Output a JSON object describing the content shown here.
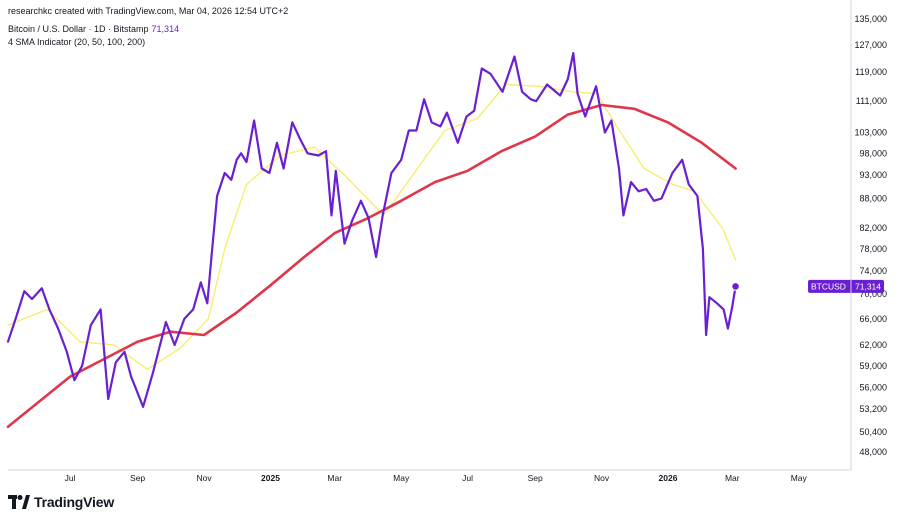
{
  "header": {
    "credit": "researchkc created with TradingView.com, Mar 04, 2026 12:54 UTC+2",
    "symbol": "Bitcoin / U.S. Dollar · 1D · Bitstamp",
    "last_price_inline": "71,314",
    "indicator": "4 SMA Indicator (20, 50, 100, 200)"
  },
  "footer": {
    "logo_text": "TradingView"
  },
  "colors": {
    "price": "#6a1fd0",
    "sma_fast": "#f7ee6f",
    "sma_slow": "#e0364a",
    "axis_text": "#131722",
    "axis_line": "#d1d4dc"
  },
  "chart_data": {
    "type": "line",
    "y_scale": "log",
    "y_ticks": [
      "135,000",
      "127,000",
      "119,000",
      "111,000",
      "103,000",
      "98,000",
      "93,000",
      "88,000",
      "82,000",
      "78,000",
      "74,000",
      "70,000",
      "66,000",
      "62,000",
      "59,000",
      "56,000",
      "53,200",
      "50,400",
      "48,000"
    ],
    "x_ticks": [
      {
        "label": "Jul",
        "date": "2024-07-01",
        "bold": false
      },
      {
        "label": "Sep",
        "date": "2024-09-01",
        "bold": false
      },
      {
        "label": "Nov",
        "date": "2024-11-01",
        "bold": false
      },
      {
        "label": "2025",
        "date": "2025-01-01",
        "bold": true
      },
      {
        "label": "Mar",
        "date": "2025-03-01",
        "bold": false
      },
      {
        "label": "May",
        "date": "2025-05-01",
        "bold": false
      },
      {
        "label": "Jul",
        "date": "2025-07-01",
        "bold": false
      },
      {
        "label": "Sep",
        "date": "2025-09-01",
        "bold": false
      },
      {
        "label": "Nov",
        "date": "2025-11-01",
        "bold": false
      },
      {
        "label": "2026",
        "date": "2026-01-01",
        "bold": true
      },
      {
        "label": "Mar",
        "date": "2026-03-01",
        "bold": false
      },
      {
        "label": "May",
        "date": "2026-05-01",
        "bold": false
      }
    ],
    "x_range": [
      "2024-05-05",
      "2026-06-18"
    ],
    "y_range": [
      46000,
      138000
    ],
    "last_price_label": {
      "symbol": "BTCUSD",
      "value": "71,314"
    },
    "series": [
      {
        "role": "price",
        "points": [
          [
            "2024-05-05",
            62500
          ],
          [
            "2024-05-12",
            66000
          ],
          [
            "2024-05-20",
            70500
          ],
          [
            "2024-05-27",
            69200
          ],
          [
            "2024-06-05",
            71000
          ],
          [
            "2024-06-12",
            67500
          ],
          [
            "2024-06-20",
            64500
          ],
          [
            "2024-06-28",
            61000
          ],
          [
            "2024-07-05",
            57000
          ],
          [
            "2024-07-12",
            59000
          ],
          [
            "2024-07-20",
            65000
          ],
          [
            "2024-07-29",
            67500
          ],
          [
            "2024-08-05",
            54500
          ],
          [
            "2024-08-12",
            59500
          ],
          [
            "2024-08-20",
            61000
          ],
          [
            "2024-08-26",
            57500
          ],
          [
            "2024-09-06",
            53500
          ],
          [
            "2024-09-15",
            58000
          ],
          [
            "2024-09-27",
            65500
          ],
          [
            "2024-10-05",
            62000
          ],
          [
            "2024-10-14",
            66000
          ],
          [
            "2024-10-22",
            67500
          ],
          [
            "2024-10-29",
            72000
          ],
          [
            "2024-11-04",
            68500
          ],
          [
            "2024-11-08",
            77000
          ],
          [
            "2024-11-13",
            88500
          ],
          [
            "2024-11-20",
            93500
          ],
          [
            "2024-11-26",
            92000
          ],
          [
            "2024-12-01",
            96500
          ],
          [
            "2024-12-05",
            98000
          ],
          [
            "2024-12-10",
            96000
          ],
          [
            "2024-12-17",
            106000
          ],
          [
            "2024-12-24",
            94500
          ],
          [
            "2024-12-31",
            93500
          ],
          [
            "2025-01-07",
            100500
          ],
          [
            "2025-01-13",
            94500
          ],
          [
            "2025-01-21",
            105500
          ],
          [
            "2025-01-28",
            101500
          ],
          [
            "2025-02-04",
            98000
          ],
          [
            "2025-02-14",
            97500
          ],
          [
            "2025-02-21",
            98500
          ],
          [
            "2025-02-26",
            84500
          ],
          [
            "2025-03-02",
            94000
          ],
          [
            "2025-03-10",
            79000
          ],
          [
            "2025-03-17",
            83500
          ],
          [
            "2025-03-25",
            87500
          ],
          [
            "2025-04-01",
            84000
          ],
          [
            "2025-04-08",
            76500
          ],
          [
            "2025-04-14",
            84500
          ],
          [
            "2025-04-22",
            93500
          ],
          [
            "2025-05-01",
            96500
          ],
          [
            "2025-05-08",
            103500
          ],
          [
            "2025-05-15",
            103500
          ],
          [
            "2025-05-22",
            111500
          ],
          [
            "2025-05-29",
            105500
          ],
          [
            "2025-06-06",
            104500
          ],
          [
            "2025-06-12",
            108000
          ],
          [
            "2025-06-22",
            100500
          ],
          [
            "2025-06-30",
            107000
          ],
          [
            "2025-07-07",
            108500
          ],
          [
            "2025-07-14",
            120000
          ],
          [
            "2025-07-22",
            118500
          ],
          [
            "2025-08-02",
            113500
          ],
          [
            "2025-08-13",
            123500
          ],
          [
            "2025-08-20",
            113500
          ],
          [
            "2025-08-28",
            111500
          ],
          [
            "2025-09-02",
            111000
          ],
          [
            "2025-09-12",
            115500
          ],
          [
            "2025-09-24",
            112500
          ],
          [
            "2025-10-01",
            117000
          ],
          [
            "2025-10-06",
            124500
          ],
          [
            "2025-10-10",
            113000
          ],
          [
            "2025-10-17",
            107000
          ],
          [
            "2025-10-27",
            115000
          ],
          [
            "2025-11-04",
            103000
          ],
          [
            "2025-11-10",
            106000
          ],
          [
            "2025-11-17",
            94500
          ],
          [
            "2025-11-21",
            84500
          ],
          [
            "2025-11-28",
            91500
          ],
          [
            "2025-12-05",
            89500
          ],
          [
            "2025-12-12",
            90000
          ],
          [
            "2025-12-19",
            87500
          ],
          [
            "2025-12-26",
            88000
          ],
          [
            "2026-01-05",
            93500
          ],
          [
            "2026-01-14",
            96500
          ],
          [
            "2026-01-20",
            91000
          ],
          [
            "2026-01-28",
            88500
          ],
          [
            "2026-02-02",
            78000
          ],
          [
            "2026-02-05",
            63500
          ],
          [
            "2026-02-08",
            69500
          ],
          [
            "2026-02-15",
            68500
          ],
          [
            "2026-02-21",
            67500
          ],
          [
            "2026-02-25",
            64500
          ],
          [
            "2026-03-01",
            68000
          ],
          [
            "2026-03-04",
            71314
          ]
        ]
      },
      {
        "role": "sma_fast",
        "points": [
          [
            "2024-05-05",
            65000
          ],
          [
            "2024-06-10",
            67500
          ],
          [
            "2024-07-10",
            62500
          ],
          [
            "2024-08-10",
            62000
          ],
          [
            "2024-09-10",
            58500
          ],
          [
            "2024-10-10",
            61500
          ],
          [
            "2024-11-05",
            66000
          ],
          [
            "2024-11-20",
            78000
          ],
          [
            "2024-12-10",
            91000
          ],
          [
            "2025-01-10",
            97500
          ],
          [
            "2025-02-10",
            99500
          ],
          [
            "2025-03-10",
            93000
          ],
          [
            "2025-04-15",
            84500
          ],
          [
            "2025-05-10",
            92500
          ],
          [
            "2025-06-10",
            103500
          ],
          [
            "2025-07-10",
            106500
          ],
          [
            "2025-08-05",
            115500
          ],
          [
            "2025-09-05",
            115000
          ],
          [
            "2025-10-05",
            113500
          ],
          [
            "2025-10-28",
            113000
          ],
          [
            "2025-11-15",
            104500
          ],
          [
            "2025-12-10",
            94500
          ],
          [
            "2026-01-05",
            91000
          ],
          [
            "2026-01-25",
            89500
          ],
          [
            "2026-02-20",
            82000
          ],
          [
            "2026-03-04",
            76000
          ]
        ]
      },
      {
        "role": "sma_slow",
        "points": [
          [
            "2024-05-05",
            51000
          ],
          [
            "2024-07-01",
            57500
          ],
          [
            "2024-09-01",
            62500
          ],
          [
            "2024-10-01",
            64000
          ],
          [
            "2024-11-01",
            63500
          ],
          [
            "2024-12-01",
            67000
          ],
          [
            "2025-01-01",
            71500
          ],
          [
            "2025-02-01",
            76500
          ],
          [
            "2025-03-01",
            81000
          ],
          [
            "2025-04-01",
            84000
          ],
          [
            "2025-05-01",
            87500
          ],
          [
            "2025-06-01",
            91500
          ],
          [
            "2025-07-01",
            94000
          ],
          [
            "2025-08-01",
            98500
          ],
          [
            "2025-09-01",
            102000
          ],
          [
            "2025-10-01",
            107500
          ],
          [
            "2025-11-01",
            110000
          ],
          [
            "2025-12-01",
            109000
          ],
          [
            "2026-01-01",
            105500
          ],
          [
            "2026-02-01",
            100500
          ],
          [
            "2026-03-04",
            94500
          ]
        ]
      }
    ]
  }
}
